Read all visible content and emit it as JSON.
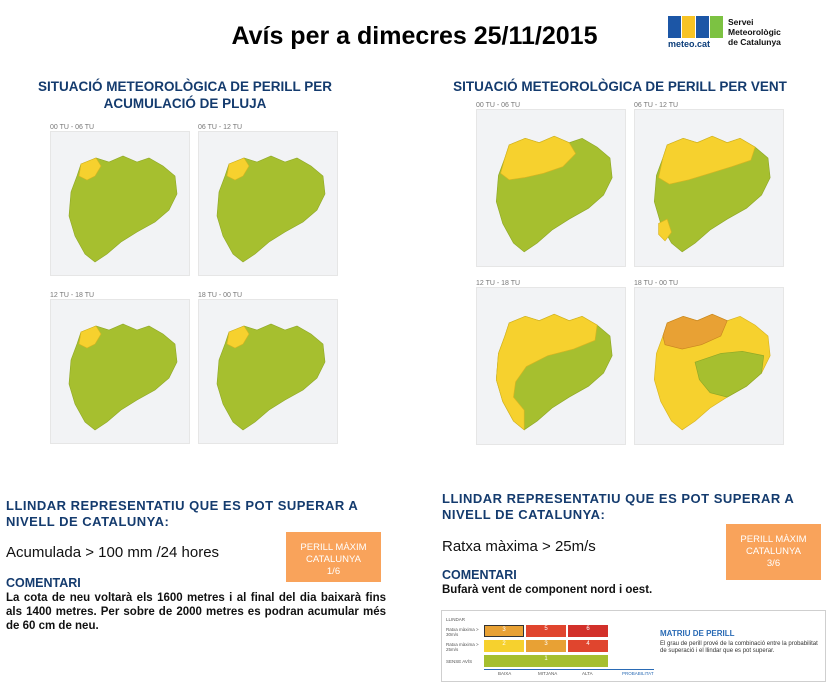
{
  "title": "Avís per a dimecres 25/11/2015",
  "logo": {
    "brand": "meteo.cat",
    "service": [
      "Servei",
      "Meteorològic",
      "de Catalunya"
    ]
  },
  "colors": {
    "green": "#a6bf2f",
    "yellow": "#f6d12e",
    "orange": "#e8a134",
    "badge": "#f9a35b",
    "heading": "#143b6e"
  },
  "rain": {
    "heading_line1": "SITUACIÓ METEOROLÒGICA DE PERILL PER",
    "heading_line2": "ACUMULACIÓ DE PLUJA",
    "panels": [
      {
        "label": "00 TU - 06 TU",
        "level": "north-yellow"
      },
      {
        "label": "06 TU - 12 TU",
        "level": "north-yellow"
      },
      {
        "label": "12 TU - 18 TU",
        "level": "north-yellow"
      },
      {
        "label": "18 TU - 00 TU",
        "level": "north-yellow"
      }
    ],
    "threshold_line1": "LLINDAR REPRESENTATIU QUE ES POT SUPERAR A",
    "threshold_line2": "NIVELL DE CATALUNYA:",
    "value": "Acumulada > 100 mm /24 hores",
    "badge": {
      "line1": "PERILL MÀXIM",
      "line2": "CATALUNYA",
      "line3": "1/6"
    },
    "comment_heading": "COMENTARI",
    "comment": "La cota de neu voltarà els 1600 metres i al final del dia baixarà fins als 1400 metres. Per sobre de 2000 metres es podran acumular més de 60 cm de neu."
  },
  "wind": {
    "heading": "SITUACIÓ METEOROLÒGICA DE PERILL PER VENT",
    "panels": [
      {
        "label": "00 TU - 06 TU",
        "level": "north-yellow"
      },
      {
        "label": "06 TU - 12 TU",
        "level": "north-yellow"
      },
      {
        "label": "12 TU - 18 TU",
        "level": "wide-yellow"
      },
      {
        "label": "18 TU - 00 TU",
        "level": "orange"
      }
    ],
    "threshold_line1": "LLINDAR REPRESENTATIU QUE ES POT SUPERAR A",
    "threshold_line2": "NIVELL DE CATALUNYA:",
    "value": "Ratxa màxima > 25m/s",
    "badge": {
      "line1": "PERILL MÀXIM",
      "line2": "CATALUNYA",
      "line3": "3/6"
    },
    "comment_heading": "COMENTARI",
    "comment": "Bufarà vent de component nord i oest."
  },
  "matrix": {
    "title": "MATRIU DE PERILL",
    "text": "El grau de perill prové de la combinació entre la probabilitat de superació i el llindar que es pot superar.",
    "row_labels": [
      "LLINDAR",
      "Ratxa màxima > 30m/s",
      "Ratxa màxima > 25m/s",
      "SENSE AVÍS"
    ],
    "col_labels": [
      "BAIXA",
      "MITJANA",
      "ALTA",
      "PROBABILITAT"
    ],
    "rows": [
      {
        "values": [
          "3",
          "5",
          "6"
        ],
        "colors": [
          "#e8a134",
          "#e0452e",
          "#d2302a"
        ]
      },
      {
        "values": [
          "2",
          "3",
          "4"
        ],
        "colors": [
          "#f6d12e",
          "#e8a134",
          "#e0452e"
        ]
      },
      {
        "values": [
          "1",
          "",
          ""
        ],
        "colors": [
          "#a6bf2f",
          "#a6bf2f",
          "#a6bf2f"
        ]
      }
    ]
  }
}
